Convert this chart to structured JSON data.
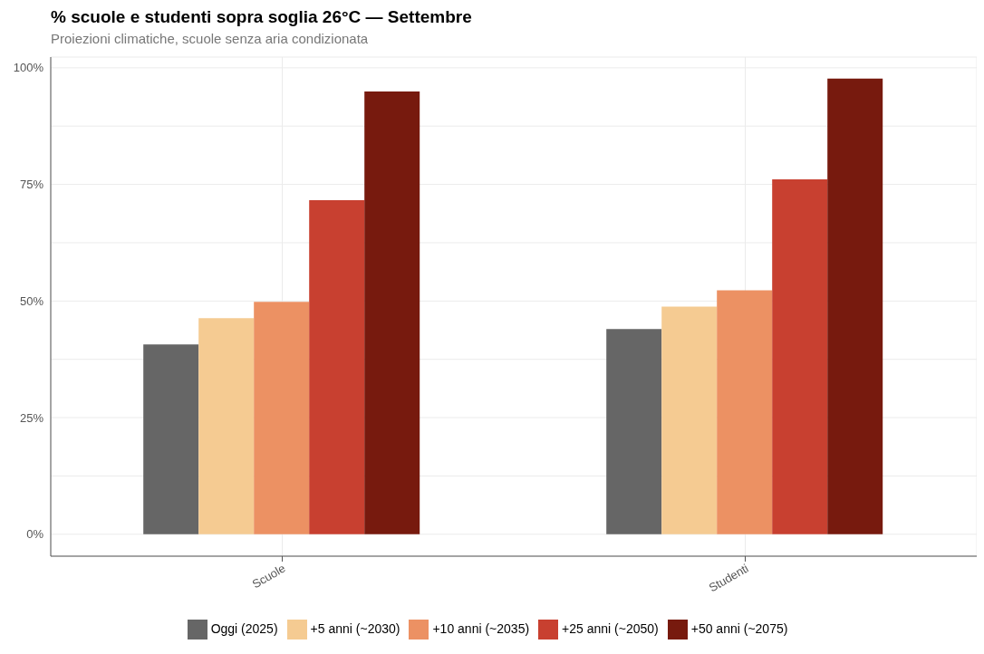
{
  "chart_data": {
    "type": "bar",
    "title": "% scuole e studenti sopra soglia 26°C — Settembre",
    "subtitle": "Proiezioni climatiche, scuole senza aria condizionata",
    "categories": [
      "Scuole",
      "Studenti"
    ],
    "series": [
      {
        "name": "Oggi (2025)",
        "color": "#666666",
        "values": [
          40.7,
          44.0
        ]
      },
      {
        "name": "+5 anni (~2030)",
        "color": "#f5cb92",
        "values": [
          46.3,
          48.8
        ]
      },
      {
        "name": "+10 anni (~2035)",
        "color": "#ec9163",
        "values": [
          49.8,
          52.3
        ]
      },
      {
        "name": "+25 anni (~2050)",
        "color": "#c84030",
        "values": [
          71.6,
          76.1
        ]
      },
      {
        "name": "+50 anni (~2075)",
        "color": "#771a0e",
        "values": [
          94.9,
          97.7
        ]
      }
    ],
    "ylim": [
      -4.7,
      102.3
    ],
    "yticks": [
      {
        "value": 0,
        "label": "0%"
      },
      {
        "value": 12.5,
        "label": null
      },
      {
        "value": 25,
        "label": "25%"
      },
      {
        "value": 37.5,
        "label": null
      },
      {
        "value": 50,
        "label": "50%"
      },
      {
        "value": 62.5,
        "label": null
      },
      {
        "value": 75,
        "label": "75%"
      },
      {
        "value": 87.5,
        "label": null
      },
      {
        "value": 100,
        "label": "100%"
      }
    ],
    "grid": true,
    "legend": "bottom"
  }
}
